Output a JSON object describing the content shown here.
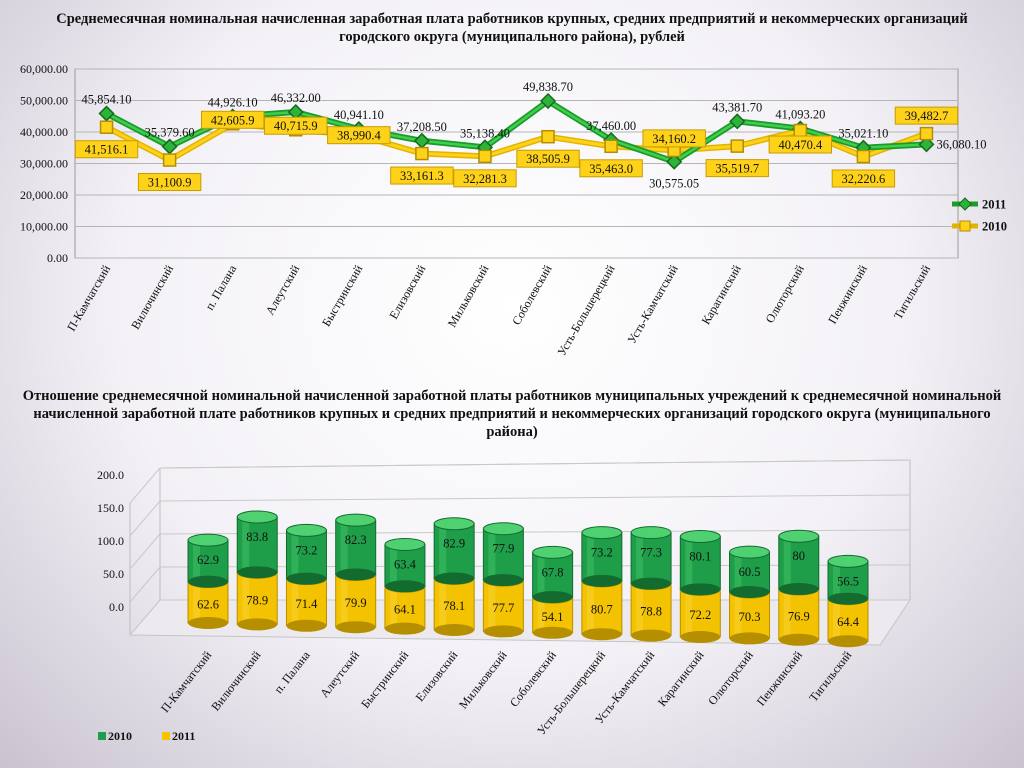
{
  "chart_data": [
    {
      "type": "line",
      "title": "Среднемесячная номинальная начисленная заработная плата работников крупных, средних предприятий и некоммерческих организаций городского округа (муниципального района), рублей",
      "categories": [
        "П-Камчатский",
        "Вилючинский",
        "п. Палана",
        "Алеутский",
        "Быстринский",
        "Елизовский",
        "Мильковский",
        "Соболевский",
        "Усть-Большерецкий",
        "Усть-Камчатский",
        "Карагинский",
        "Олюторский",
        "Пенжинский",
        "Тигильский"
      ],
      "ylim": [
        0,
        60000
      ],
      "yticks": [
        "0.00",
        "10,000.00",
        "20,000.00",
        "30,000.00",
        "40,000.00",
        "50,000.00",
        "60,000.00"
      ],
      "grid": true,
      "legend_position": "right",
      "series": [
        {
          "name": "2011",
          "color": "#22aa33",
          "values": [
            45854.1,
            35379.6,
            44926.1,
            46332.0,
            40941.1,
            37208.5,
            35138.4,
            49838.7,
            37460.0,
            30575.05,
            43381.7,
            41093.2,
            35021.1,
            36080.1
          ],
          "labels": [
            "45,854.10",
            "35,379.60",
            "44,926.10",
            "46,332.00",
            "40,941.10",
            "37,208.50",
            "35,138.40",
            "49,838.70",
            "37,460.00",
            "30,575.05",
            "43,381.70",
            "41,093.20",
            "35,021.10",
            "36,080.10"
          ]
        },
        {
          "name": "2010",
          "color": "#f5c400",
          "values": [
            41516.1,
            31100.9,
            42605.9,
            40715.9,
            38990.4,
            33161.3,
            32281.3,
            38505.9,
            35463.0,
            34160.2,
            35519.7,
            40470.4,
            32220.6,
            39482.7
          ],
          "labels": [
            "41,516.1",
            "31,100.9",
            "42,605.9",
            "40,715.9",
            "38,990.4",
            "33,161.3",
            "32,281.3",
            "38,505.9",
            "35,463.0",
            "34,160.2",
            "35,519.7",
            "40,470.4",
            "32,220.6",
            "39,482.7"
          ]
        }
      ]
    },
    {
      "type": "bar",
      "stacked": true,
      "three_d": true,
      "title": "Отношение среднемесячной номинальной начисленной заработной платы работников муниципальных учреждений к среднемесячной номинальной начисленной заработной плате работников крупных и средних предприятий и некоммерческих организаций городского округа (муниципального района)",
      "categories": [
        "П-Камчатский",
        "Вилючинский",
        "п. Палана",
        "Алеутский",
        "Быстринский",
        "Елизовский",
        "Мильковский",
        "Соболевский",
        "Усть-Большерецкий",
        "Усть-Камчатский",
        "Карагинский",
        "Олюторский",
        "Пенжинский",
        "Тигильский"
      ],
      "ylim": [
        0,
        200
      ],
      "yticks": [
        "0.0",
        "50.0",
        "100.0",
        "150.0",
        "200.0"
      ],
      "grid": true,
      "legend_position": "bottom-left",
      "series": [
        {
          "name": "2010",
          "color": "#1f9e4a",
          "values": [
            62.9,
            83.8,
            73.2,
            82.3,
            63.4,
            82.9,
            77.9,
            67.8,
            73.2,
            77.3,
            80.1,
            60.5,
            80,
            56.5
          ],
          "labels": [
            "62.9",
            "83.8",
            "73.2",
            "82.3",
            "63.4",
            "82.9",
            "77.9",
            "67.8",
            "73.2",
            "77.3",
            "80.1",
            "60.5",
            "80",
            "56.5"
          ]
        },
        {
          "name": "2011",
          "color": "#f5c400",
          "values": [
            62.6,
            78.9,
            71.4,
            79.9,
            64.1,
            78.1,
            77.7,
            54.1,
            80.7,
            78.8,
            72.2,
            70.3,
            76.9,
            64.4
          ],
          "labels": [
            "62.6",
            "78.9",
            "71.4",
            "79.9",
            "64.1",
            "78.1",
            "77.7",
            "54.1",
            "80.7",
            "78.8",
            "72.2",
            "70.3",
            "76.9",
            "64.4"
          ]
        }
      ]
    }
  ]
}
